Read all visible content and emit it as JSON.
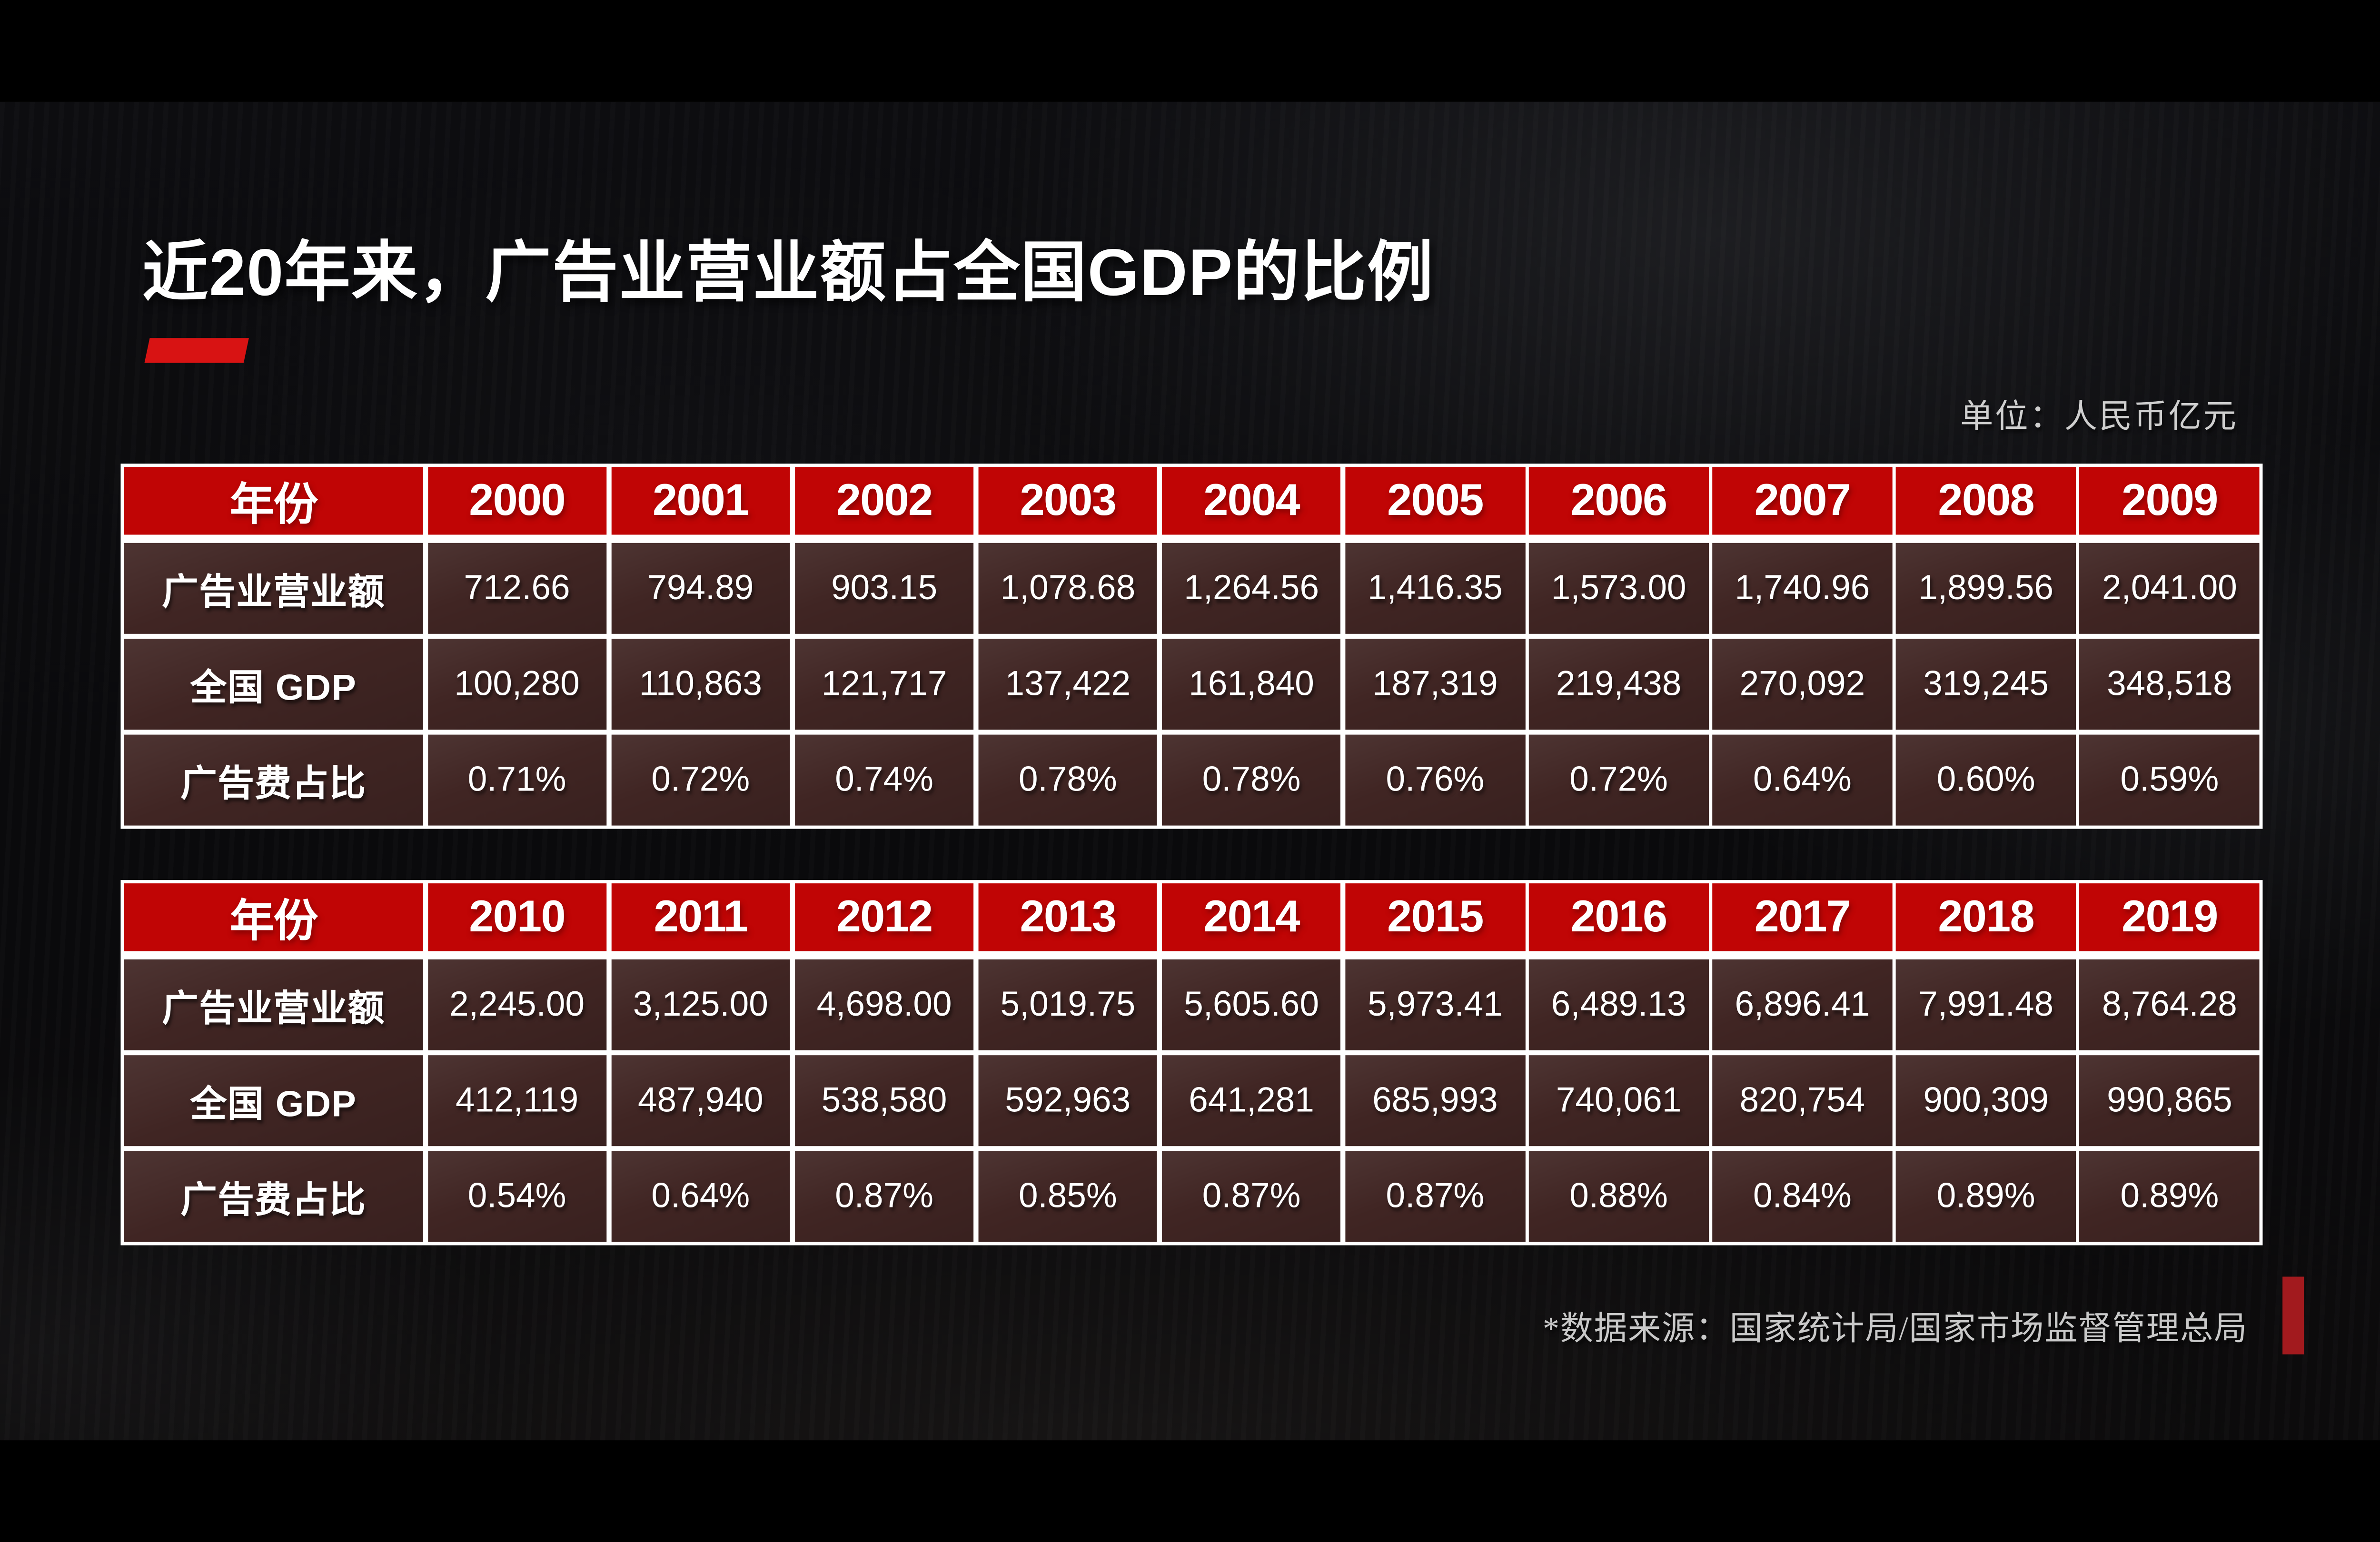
{
  "slide": {
    "title": "近20年来，广告业营业额占全国GDP的比例",
    "unit_label": "单位：人民币亿元",
    "source_note": "*数据来源：国家统计局/国家市场监督管理总局"
  },
  "colors": {
    "header_red": "#C00505",
    "cell_maroon": "#402523",
    "accent_red": "#D81313",
    "sidebar_red": "#A21A1E",
    "muted_text": "#CFCFCF"
  },
  "chart_data": [
    {
      "type": "table",
      "columns": [
        "年份",
        "2000",
        "2001",
        "2002",
        "2003",
        "2004",
        "2005",
        "2006",
        "2007",
        "2008",
        "2009"
      ],
      "rows": [
        {
          "label": "广告业营业额",
          "values": [
            "712.66",
            "794.89",
            "903.15",
            "1,078.68",
            "1,264.56",
            "1,416.35",
            "1,573.00",
            "1,740.96",
            "1,899.56",
            "2,041.00"
          ]
        },
        {
          "label": "全国 GDP",
          "values": [
            "100,280",
            "110,863",
            "121,717",
            "137,422",
            "161,840",
            "187,319",
            "219,438",
            "270,092",
            "319,245",
            "348,518"
          ]
        },
        {
          "label": "广告费占比",
          "values": [
            "0.71%",
            "0.72%",
            "0.74%",
            "0.78%",
            "0.78%",
            "0.76%",
            "0.72%",
            "0.64%",
            "0.60%",
            "0.59%"
          ]
        }
      ]
    },
    {
      "type": "table",
      "columns": [
        "年份",
        "2010",
        "2011",
        "2012",
        "2013",
        "2014",
        "2015",
        "2016",
        "2017",
        "2018",
        "2019"
      ],
      "rows": [
        {
          "label": "广告业营业额",
          "values": [
            "2,245.00",
            "3,125.00",
            "4,698.00",
            "5,019.75",
            "5,605.60",
            "5,973.41",
            "6,489.13",
            "6,896.41",
            "7,991.48",
            "8,764.28"
          ]
        },
        {
          "label": "全国 GDP",
          "values": [
            "412,119",
            "487,940",
            "538,580",
            "592,963",
            "641,281",
            "685,993",
            "740,061",
            "820,754",
            "900,309",
            "990,865"
          ]
        },
        {
          "label": "广告费占比",
          "values": [
            "0.54%",
            "0.64%",
            "0.87%",
            "0.85%",
            "0.87%",
            "0.87%",
            "0.88%",
            "0.84%",
            "0.89%",
            "0.89%"
          ]
        }
      ]
    }
  ]
}
